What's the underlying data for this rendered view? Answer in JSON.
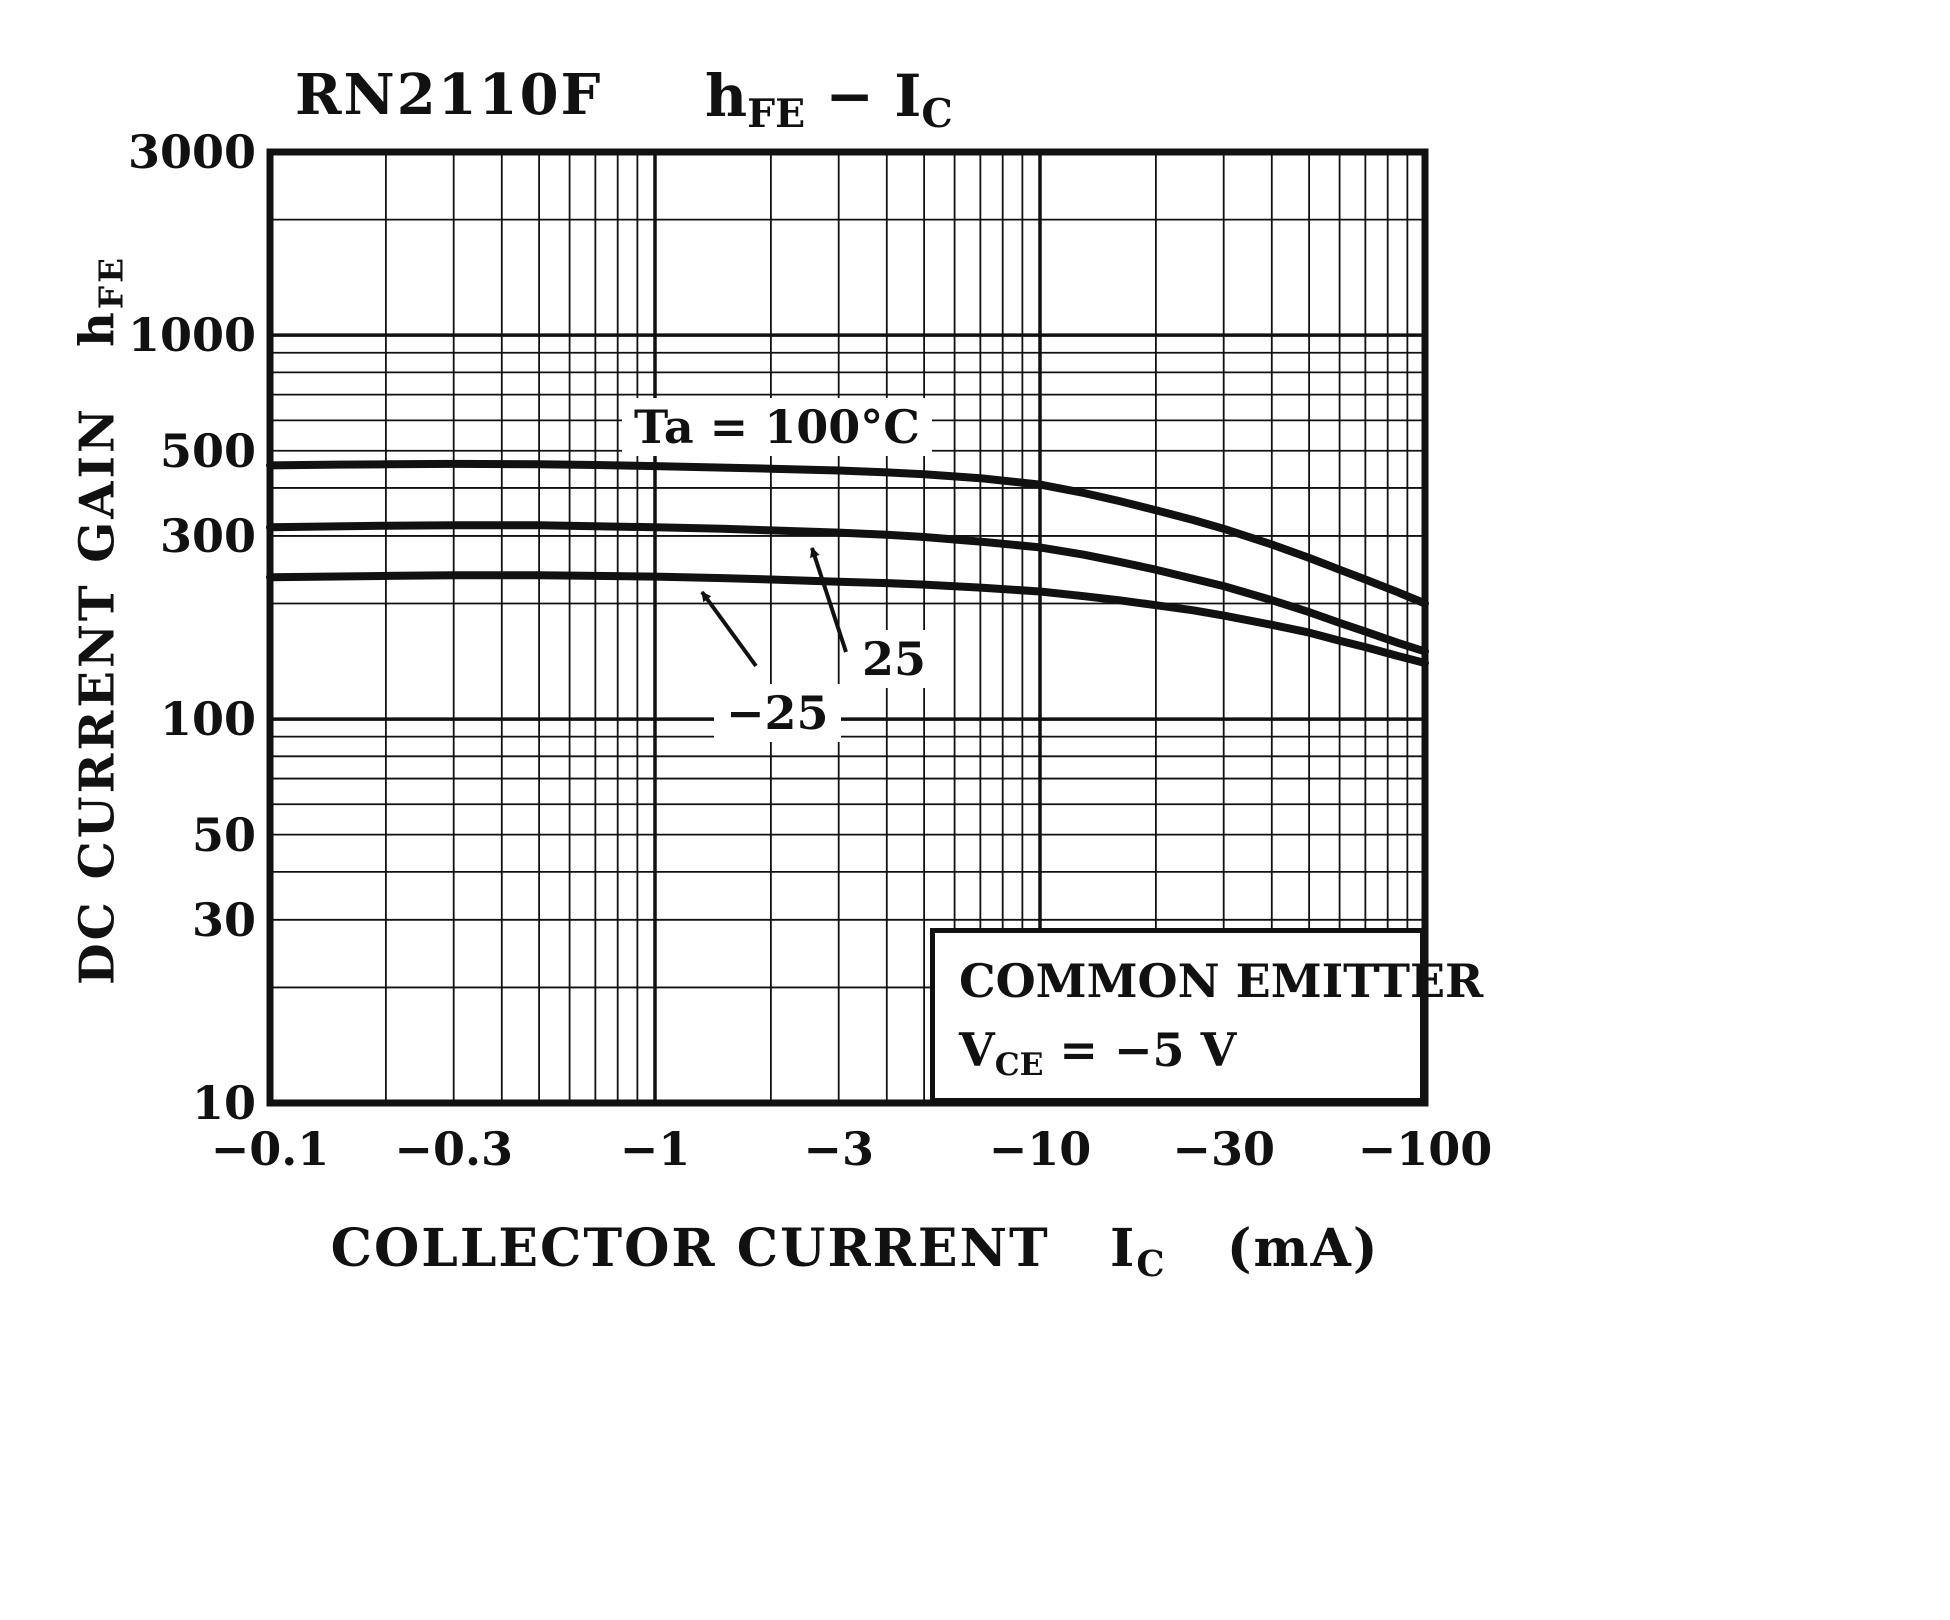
{
  "page": {
    "background": "#ffffff",
    "ink": "#111111"
  },
  "header": {
    "part_number": "RN2110F",
    "title": {
      "h": "h",
      "h_sub": "FE",
      "dash": "−",
      "i": "I",
      "i_sub": "C"
    }
  },
  "axes": {
    "y_title": {
      "text": "DC CURRENT GAIN",
      "h": "h",
      "h_sub": "FE"
    },
    "x_title": {
      "text": "COLLECTOR CURRENT",
      "i": "I",
      "i_sub": "C",
      "unit": "(mA)"
    }
  },
  "annotations": {
    "curve_top_label": "Ta = 100°C",
    "curve_mid_label": "25",
    "curve_bottom_label": "−25"
  },
  "legend_box": {
    "line1": "COMMON EMITTER",
    "v": "V",
    "v_sub": "CE",
    "eq": " = ",
    "value": "−5 V"
  },
  "chart_data": {
    "type": "line",
    "title": "RN2110F  hFE − IC",
    "xlabel": "COLLECTOR CURRENT IC (mA)",
    "ylabel": "DC CURRENT GAIN hFE",
    "x_axis": {
      "scale": "log",
      "min": 0.1,
      "max": 100,
      "ticks": [
        0.1,
        0.3,
        1,
        3,
        10,
        30,
        100
      ],
      "tick_labels": [
        "−0.1",
        "−0.3",
        "−1",
        "−3",
        "−10",
        "−30",
        "−100"
      ]
    },
    "y_axis": {
      "scale": "log",
      "min": 10,
      "max": 3000,
      "ticks": [
        10,
        30,
        50,
        100,
        300,
        500,
        1000,
        3000
      ],
      "tick_labels": [
        "10",
        "30",
        "50",
        "100",
        "300",
        "500",
        "1000",
        "3000"
      ]
    },
    "grid": "log-log minor and major lines",
    "conditions": [
      "COMMON EMITTER",
      "VCE = −5 V"
    ],
    "series": [
      {
        "name": "Ta = 100°C",
        "points": [
          [
            0.1,
            458
          ],
          [
            0.15,
            460
          ],
          [
            0.2,
            461
          ],
          [
            0.3,
            462
          ],
          [
            0.5,
            461
          ],
          [
            0.7,
            459
          ],
          [
            1,
            456
          ],
          [
            1.5,
            452
          ],
          [
            2,
            449
          ],
          [
            3,
            444
          ],
          [
            4,
            439
          ],
          [
            5,
            434
          ],
          [
            7,
            424
          ],
          [
            10,
            408
          ],
          [
            13,
            388
          ],
          [
            16,
            370
          ],
          [
            20,
            350
          ],
          [
            25,
            330
          ],
          [
            30,
            313
          ],
          [
            40,
            285
          ],
          [
            50,
            263
          ],
          [
            60,
            245
          ],
          [
            70,
            231
          ],
          [
            85,
            214
          ],
          [
            100,
            200
          ]
        ]
      },
      {
        "name": "Ta = 25°C",
        "points": [
          [
            0.1,
            316
          ],
          [
            0.2,
            319
          ],
          [
            0.3,
            320
          ],
          [
            0.5,
            320
          ],
          [
            0.7,
            318
          ],
          [
            1,
            316
          ],
          [
            1.5,
            313
          ],
          [
            2,
            310
          ],
          [
            3,
            306
          ],
          [
            4,
            302
          ],
          [
            5,
            298
          ],
          [
            7,
            290
          ],
          [
            10,
            280
          ],
          [
            13,
            268
          ],
          [
            16,
            257
          ],
          [
            20,
            245
          ],
          [
            25,
            232
          ],
          [
            30,
            222
          ],
          [
            40,
            204
          ],
          [
            50,
            190
          ],
          [
            60,
            178
          ],
          [
            70,
            169
          ],
          [
            85,
            158
          ],
          [
            100,
            150
          ]
        ]
      },
      {
        "name": "Ta = −25°C",
        "points": [
          [
            0.1,
            234
          ],
          [
            0.2,
            236
          ],
          [
            0.3,
            237
          ],
          [
            0.5,
            237
          ],
          [
            0.7,
            236
          ],
          [
            1,
            235
          ],
          [
            1.5,
            233
          ],
          [
            2,
            231
          ],
          [
            3,
            228
          ],
          [
            4,
            226
          ],
          [
            5,
            224
          ],
          [
            7,
            220
          ],
          [
            10,
            215
          ],
          [
            13,
            209
          ],
          [
            16,
            204
          ],
          [
            20,
            198
          ],
          [
            25,
            192
          ],
          [
            30,
            186
          ],
          [
            40,
            176
          ],
          [
            50,
            168
          ],
          [
            60,
            160
          ],
          [
            70,
            154
          ],
          [
            85,
            146
          ],
          [
            100,
            140
          ]
        ]
      }
    ]
  }
}
